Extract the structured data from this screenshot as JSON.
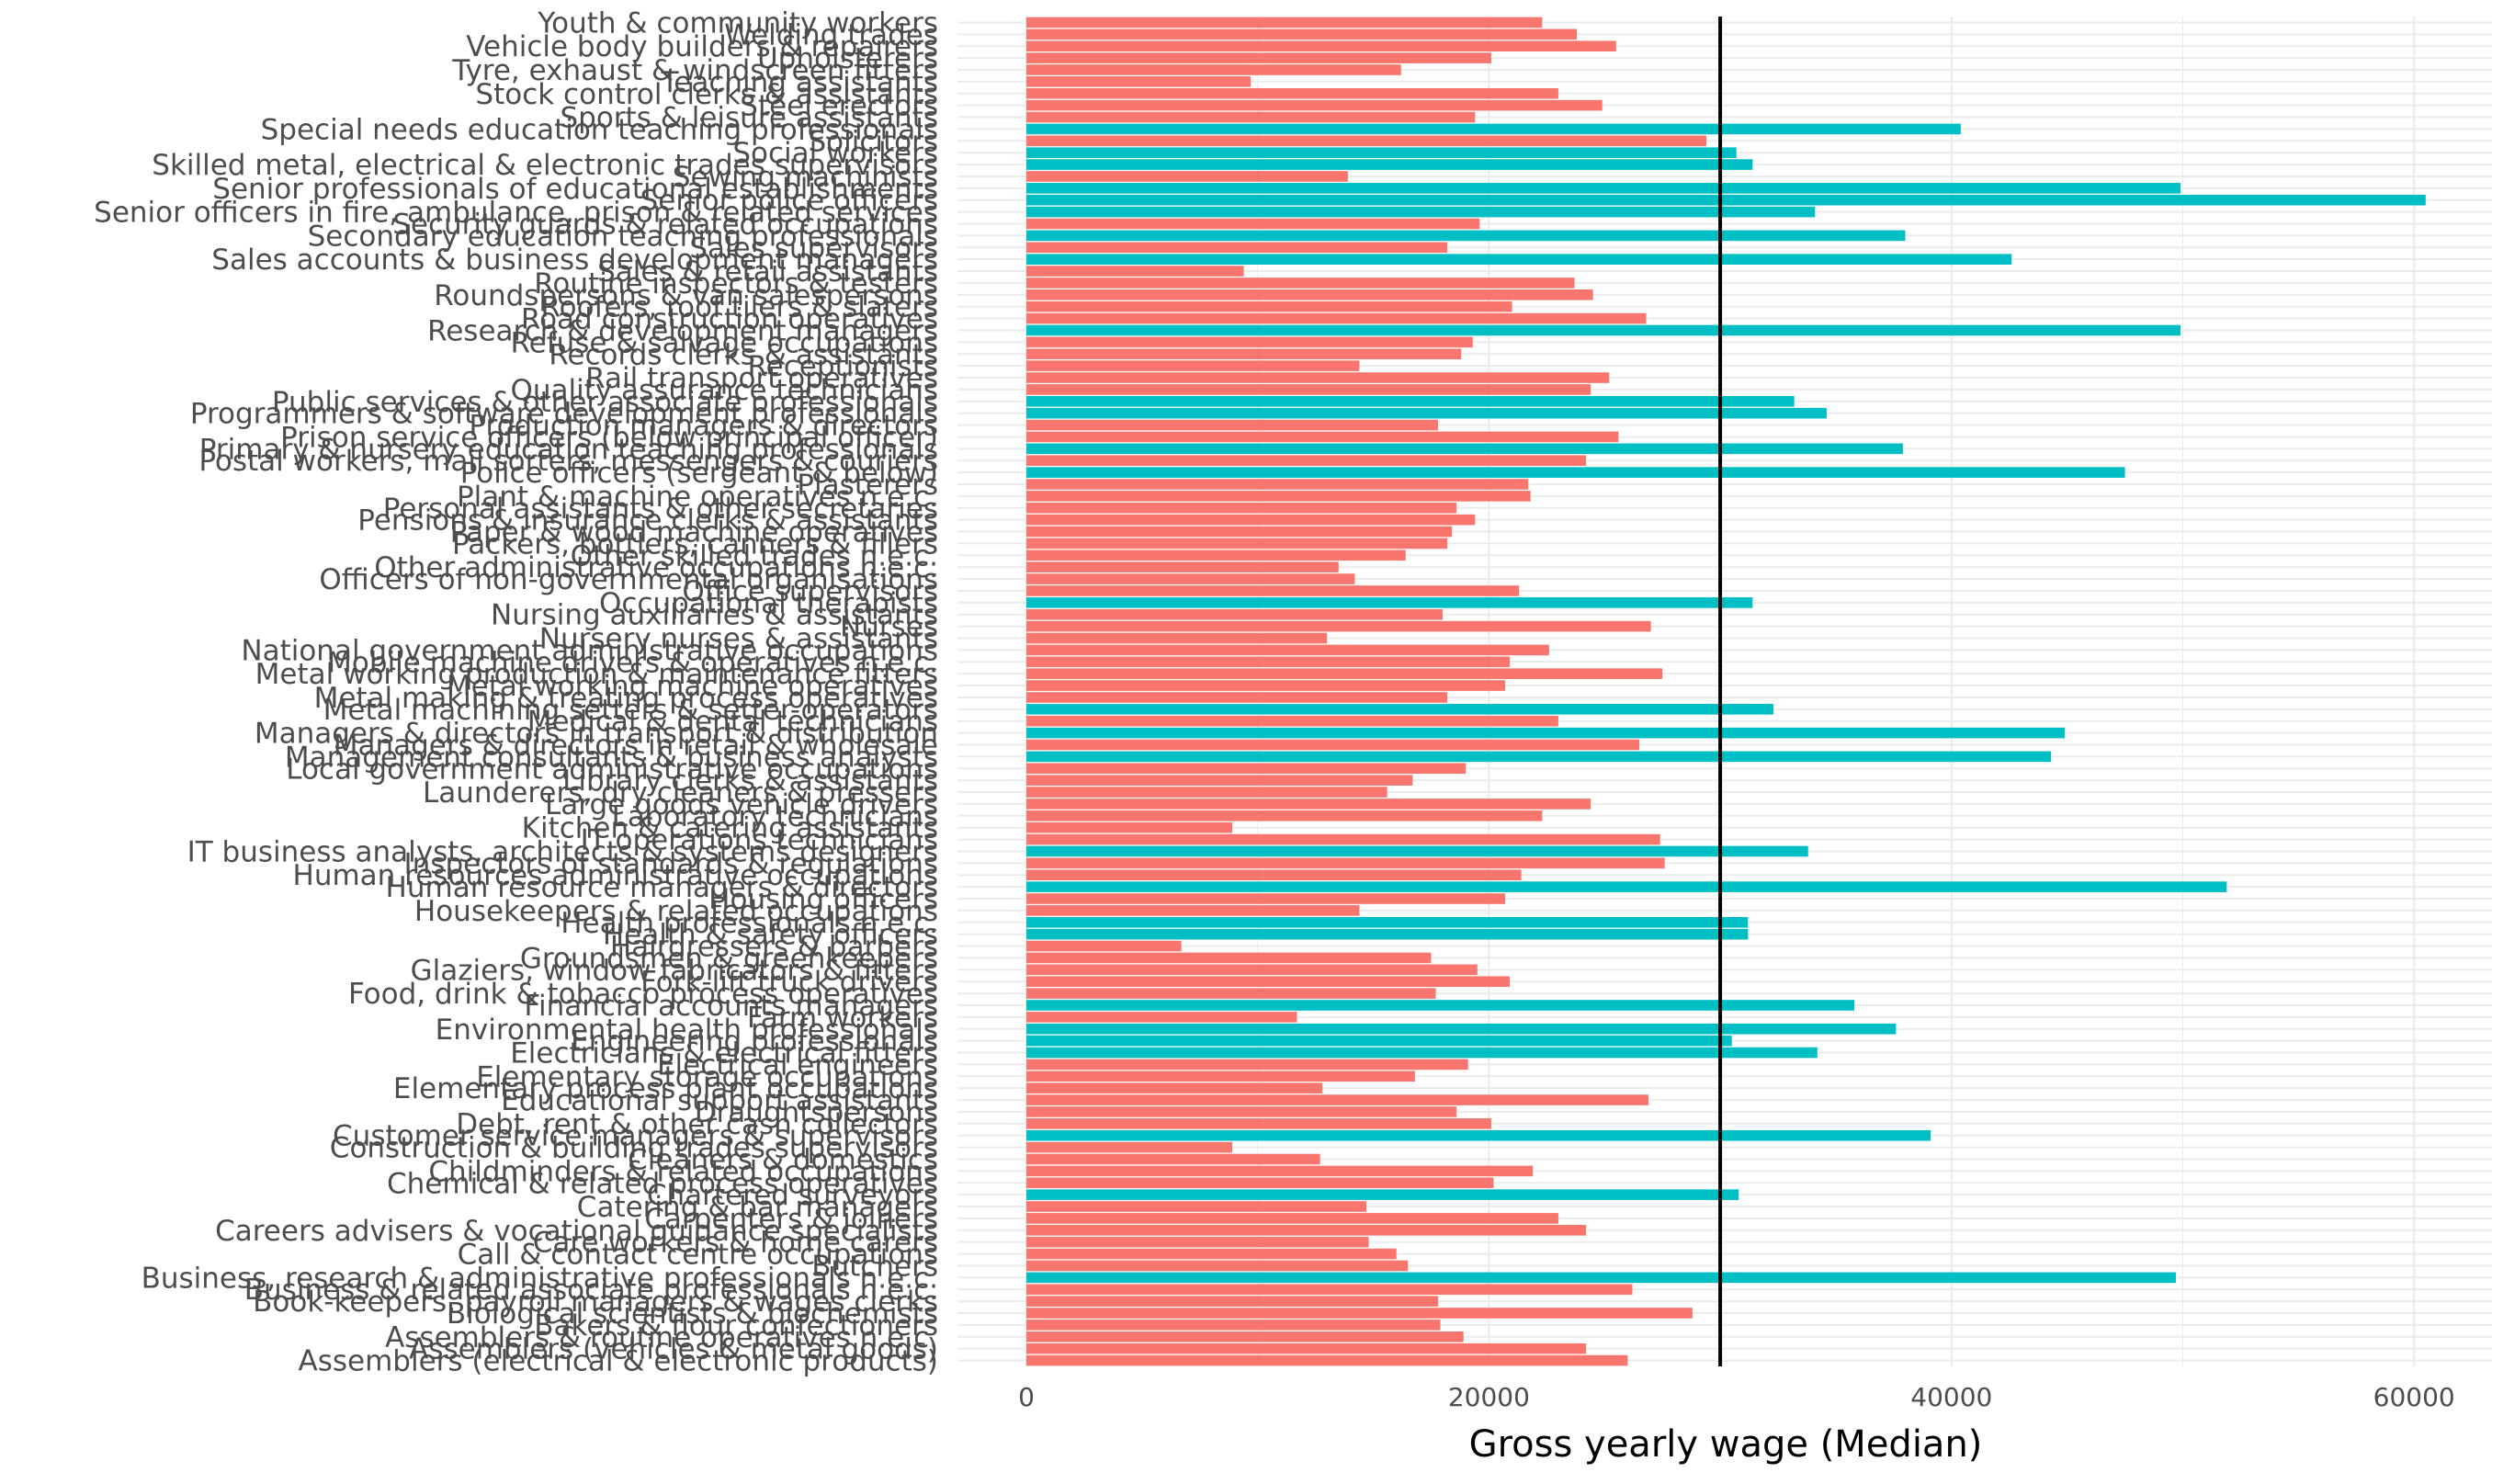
{
  "chart_data": {
    "type": "bar",
    "orientation": "horizontal",
    "xlabel": "Gross yearly wage (Median)",
    "ylabel": "",
    "xlim": [
      -3000,
      63500
    ],
    "x_ticks": [
      0,
      20000,
      40000,
      60000
    ],
    "x_tick_labels": [
      "0",
      "20000",
      "40000",
      "60000"
    ],
    "reference_line": 30000,
    "grid": true,
    "legend": "none",
    "colors": {
      "below": "#F8766D",
      "above": "#00BFC4",
      "reference": "#000000",
      "grid": "#EBEBEB"
    },
    "categories": [
      "Youth & community workers",
      "Welding trades",
      "Vehicle body builders & repairers",
      "Upholsterers",
      "Tyre, exhaust & windscreen fitters",
      "Teaching assistants",
      "Stock control clerks & assistants",
      "Steel erectors",
      "Sports & leisure assistants",
      "Special needs education teaching professionals",
      "Solicitors",
      "Social workers",
      "Skilled metal, electrical & electronic trades supervisors",
      "Sewing machinists",
      "Senior professionals of educational establishments",
      "Senior police officers",
      "Senior officers in fire, ambulance, prison & related services",
      "Security guards & related occupations",
      "Secondary education teaching professionals",
      "Sales supervisors",
      "Sales accounts & business development managers",
      "Sales & retail assistants",
      "Routine inspectors & testers",
      "Roundspersons & van salespersons",
      "Roofers, roof tilers & slaters",
      "Road construction operatives",
      "Research & development managers",
      "Refuse & salvage occupations",
      "Records clerks & assistants",
      "Receptionists",
      "Rail transport operatives",
      "Quality assurance technicians",
      "Public services & other associate professionals",
      "Programmers & software development professionals",
      "Production managers & directors",
      "Prison service officers (below principal officer)",
      "Primary & nursery education teaching professionals",
      "Postal workers, mail sorters, messengers & couriers",
      "Police officers (sergeant & below)",
      "Plasterers",
      "Plant & machine operatives n.e.c.",
      "Personal assistants & other secretaries",
      "Pensions & insurance clerks & assistants",
      "Paper & wood machine operatives",
      "Packers, bottlers, canners & fillers",
      "Other skilled trades n.e.c.",
      "Other administrative occupations n.e.c.",
      "Officers of non-governmental organisations",
      "Office supervisors",
      "Occupational therapists",
      "Nursing auxiliaries & assistants",
      "Nurses",
      "Nursery nurses & assistants",
      "National government administrative occupations",
      "Mobile machine drivers & operatives n.e.c.",
      "Metal working production & maintenance fitters",
      "Metal working machine operatives",
      "Metal making & treating process operatives",
      "Metal machining setters & setter-operators",
      "Medical & dental technicians",
      "Managers & directors in transport & distribution",
      "Managers & directors in retail & wholesale",
      "Management consultants & business analysts",
      "Local government administrative occupations",
      "Library clerks & assistants",
      "Launderers, dry cleaners & pressers",
      "Large goods vehicle drivers",
      "Laboratory technicians",
      "Kitchen & catering assistants",
      "IT operations technicians",
      "IT business analysts, architects & systems designers",
      "Inspectors of standards & regulations",
      "Human resources administrative occupations",
      "Human resource managers & directors",
      "Housing officers",
      "Housekeepers & related occupations",
      "Health professionals n.e.c.",
      "Health & safety officers",
      "Hairdressers & barbers",
      "Groundsmen & greenkeepers",
      "Glaziers, window fabricators & fitters",
      "Fork-lift truck drivers",
      "Food, drink & tobacco process operatives",
      "Financial accounts managers",
      "Farm workers",
      "Environmental health professionals",
      "Engineering professionals",
      "Electricians & electrical fitters",
      "Electrical engineers",
      "Elementary storage occupations",
      "Elementary process plant occupations",
      "Educational support assistants",
      "Draughtspersons",
      "Debt, rent & other cash collectors",
      "Customer service managers & supervisors",
      "Construction & building trades supervisors",
      "Cleaners & domestics",
      "Childminders & related occupations",
      "Chemical & related process operatives",
      "Chartered surveyors",
      "Catering & bar managers",
      "Carpenters & joiners",
      "Careers advisers & vocational guidance specialists",
      "Care workers & home carers",
      "Call & contact centre occupations",
      "Butchers",
      "Business, research & administrative professionals n.e.c.",
      "Business & related associate professionals n.e.c.",
      "Book-keepers, payroll managers & wages clerks",
      "Biological scientists & biochemists",
      "Bakers & flour confectioners",
      "Assemblers & routine operatives n.e.c.",
      "Assemblers (vehicles & metal goods)",
      "Assemblers (electrical & electronic products)"
    ],
    "values": [
      22300,
      23800,
      25500,
      20100,
      16200,
      9700,
      23000,
      24900,
      19400,
      40400,
      29400,
      30700,
      31400,
      13900,
      49900,
      60500,
      34100,
      19600,
      38000,
      18200,
      42600,
      9400,
      23700,
      24500,
      21000,
      26800,
      49900,
      19300,
      18800,
      14400,
      25200,
      24400,
      33200,
      34600,
      17800,
      25600,
      37900,
      24200,
      47500,
      21700,
      21800,
      18600,
      19400,
      18400,
      18200,
      16400,
      13500,
      14200,
      21300,
      31400,
      18000,
      27000,
      13000,
      22600,
      20900,
      27500,
      20700,
      18200,
      32300,
      23000,
      44900,
      26500,
      44300,
      19000,
      16700,
      15600,
      24400,
      22300,
      8900,
      27400,
      33800,
      27600,
      21400,
      51900,
      20700,
      14400,
      31200,
      31200,
      6700,
      17500,
      19500,
      20900,
      17700,
      35800,
      11700,
      37600,
      30500,
      34200,
      19100,
      16800,
      12800,
      26900,
      18600,
      20100,
      39100,
      8900,
      12700,
      21900,
      20200,
      30800,
      14700,
      23000,
      24200,
      14800,
      16000,
      16500,
      49700,
      26200,
      17800,
      28800,
      17900,
      18900,
      24200,
      26000
    ]
  }
}
